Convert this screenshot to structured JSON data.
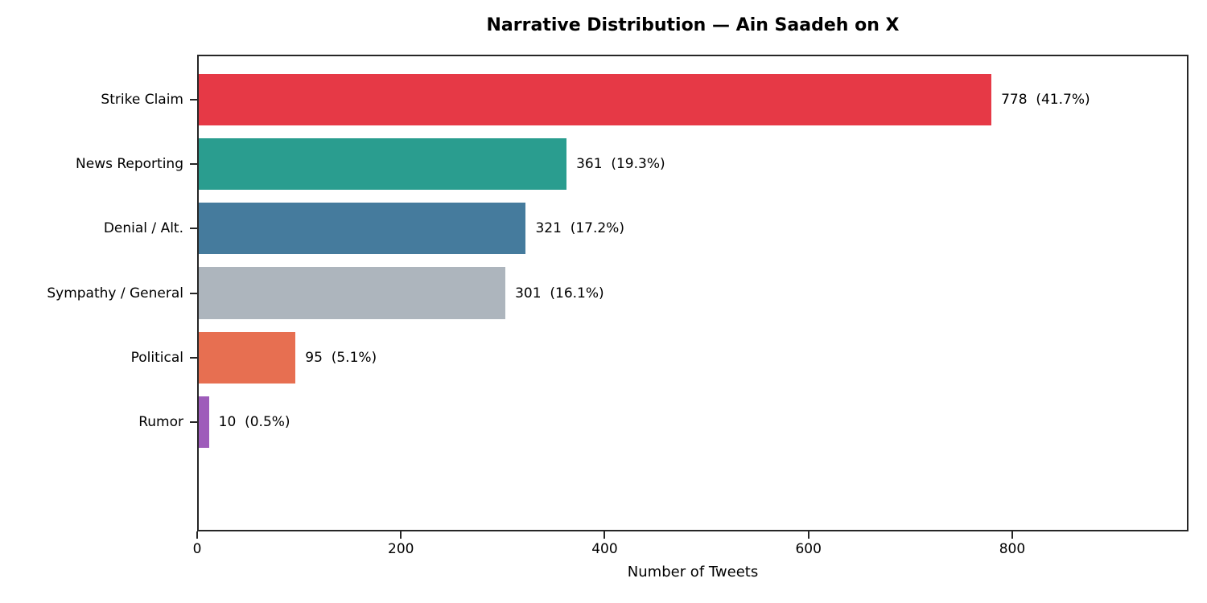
{
  "chart_data": {
    "type": "bar",
    "orientation": "horizontal",
    "title": "Narrative Distribution — Ain Saadeh on X",
    "xlabel": "Number of Tweets",
    "ylabel": "",
    "categories": [
      "Strike Claim",
      "News Reporting",
      "Denial / Alt.",
      "Sympathy / General",
      "Political",
      "Rumor"
    ],
    "values": [
      778,
      361,
      321,
      301,
      95,
      10
    ],
    "percentages": [
      41.7,
      19.3,
      17.2,
      16.1,
      5.1,
      0.5
    ],
    "value_labels": [
      "778  (41.7%)",
      "361  (19.3%)",
      "321  (17.2%)",
      "301  (16.1%)",
      "95  (5.1%)",
      "10  (0.5%)"
    ],
    "bar_colors": [
      "#e63946",
      "#2a9d8f",
      "#457b9d",
      "#adb5bd",
      "#e76f51",
      "#9e5cba"
    ],
    "xlim": [
      0,
      973
    ],
    "xticks": [
      0,
      200,
      400,
      600,
      800
    ],
    "grid": false,
    "legend": null,
    "spine_color": "#262626",
    "background_color": "#ffffff"
  }
}
